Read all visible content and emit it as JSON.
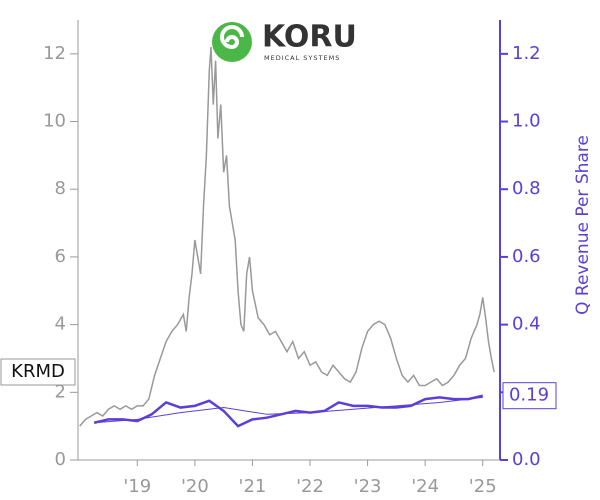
{
  "chart_data": {
    "type": "line",
    "logo_text": "KORU",
    "logo_subtext": "MEDICAL SYSTEMS",
    "y2_label": "Q Revenue Per Share",
    "ticker": "KRMD",
    "xlim": [
      2017.97,
      2025.3
    ],
    "xticks": [
      {
        "value": 2019,
        "label": "'19"
      },
      {
        "value": 2020,
        "label": "'20"
      },
      {
        "value": 2021,
        "label": "'21"
      },
      {
        "value": 2022,
        "label": "'22"
      },
      {
        "value": 2023,
        "label": "'23"
      },
      {
        "value": 2024,
        "label": "'24"
      },
      {
        "value": 2025,
        "label": "'25"
      }
    ],
    "ylim": [
      0,
      13
    ],
    "yticks": [
      0,
      2,
      4,
      6,
      8,
      10,
      12
    ],
    "y2lim": [
      0,
      1.3
    ],
    "y2ticks": [
      {
        "value": 0,
        "label": "0.0"
      },
      0.2,
      0.4,
      0.6,
      0.8,
      {
        "value": 1,
        "label": "1.0"
      },
      1.2
    ],
    "series": [
      {
        "color": "#999999",
        "x": [
          2018.0,
          2018.1,
          2018.2,
          2018.3,
          2018.4,
          2018.5,
          2018.6,
          2018.7,
          2018.8,
          2018.9,
          2019.0,
          2019.1,
          2019.2,
          2019.3,
          2019.4,
          2019.5,
          2019.6,
          2019.7,
          2019.8,
          2019.85,
          2019.9,
          2019.95,
          2020.0,
          2020.05,
          2020.1,
          2020.15,
          2020.2,
          2020.25,
          2020.28,
          2020.32,
          2020.36,
          2020.4,
          2020.45,
          2020.5,
          2020.55,
          2020.6,
          2020.65,
          2020.7,
          2020.75,
          2020.8,
          2020.85,
          2020.9,
          2020.95,
          2021.0,
          2021.1,
          2021.2,
          2021.3,
          2021.4,
          2021.5,
          2021.6,
          2021.7,
          2021.8,
          2021.9,
          2022.0,
          2022.1,
          2022.2,
          2022.3,
          2022.4,
          2022.5,
          2022.6,
          2022.7,
          2022.8,
          2022.9,
          2023.0,
          2023.1,
          2023.2,
          2023.3,
          2023.4,
          2023.5,
          2023.6,
          2023.7,
          2023.8,
          2023.9,
          2024.0,
          2024.1,
          2024.2,
          2024.3,
          2024.4,
          2024.5,
          2024.6,
          2024.7,
          2024.8,
          2024.9,
          2024.95,
          2025.0,
          2025.05,
          2025.1,
          2025.15,
          2025.2
        ],
        "values": [
          1.0,
          1.2,
          1.3,
          1.4,
          1.3,
          1.5,
          1.6,
          1.5,
          1.6,
          1.5,
          1.6,
          1.6,
          1.8,
          2.5,
          3.0,
          3.5,
          3.8,
          4.0,
          4.3,
          3.8,
          4.8,
          5.5,
          6.5,
          6.0,
          5.5,
          7.5,
          9.0,
          11.5,
          12.2,
          10.5,
          11.8,
          9.5,
          10.5,
          8.5,
          9.0,
          7.5,
          7.0,
          6.5,
          5.0,
          4.0,
          3.8,
          5.5,
          6.0,
          5.0,
          4.2,
          4.0,
          3.7,
          3.8,
          3.5,
          3.2,
          3.5,
          3.0,
          3.2,
          2.8,
          2.9,
          2.6,
          2.5,
          2.8,
          2.6,
          2.4,
          2.3,
          2.6,
          3.3,
          3.8,
          4.0,
          4.1,
          4.0,
          3.6,
          3.0,
          2.5,
          2.3,
          2.5,
          2.2,
          2.2,
          2.3,
          2.4,
          2.2,
          2.3,
          2.5,
          2.8,
          3.0,
          3.6,
          4.0,
          4.3,
          4.8,
          4.2,
          3.5,
          3.0,
          2.6
        ]
      },
      {
        "color": "#5b3fd6",
        "axis": "y2",
        "width": 2.5,
        "x": [
          2018.25,
          2018.5,
          2018.75,
          2019.0,
          2019.25,
          2019.5,
          2019.75,
          2020.0,
          2020.25,
          2020.5,
          2020.75,
          2021.0,
          2021.25,
          2021.5,
          2021.75,
          2022.0,
          2022.25,
          2022.5,
          2022.75,
          2023.0,
          2023.25,
          2023.5,
          2023.75,
          2024.0,
          2024.25,
          2024.5,
          2024.75,
          2025.0
        ],
        "values": [
          0.11,
          0.12,
          0.12,
          0.115,
          0.135,
          0.17,
          0.155,
          0.16,
          0.175,
          0.145,
          0.1,
          0.12,
          0.125,
          0.135,
          0.145,
          0.14,
          0.145,
          0.17,
          0.16,
          0.16,
          0.155,
          0.155,
          0.16,
          0.18,
          0.185,
          0.18,
          0.18,
          0.19
        ],
        "value_labels": [
          null,
          null,
          null,
          null,
          null,
          null,
          null,
          null,
          null,
          null,
          null,
          null,
          null,
          null,
          null,
          null,
          null,
          null,
          null,
          null,
          null,
          null,
          null,
          null,
          null,
          null,
          null,
          "0.19"
        ]
      },
      {
        "color": "#5b3fd6",
        "axis": "y2",
        "width": 1,
        "x": [
          2018.25,
          2019.0,
          2019.75,
          2020.5,
          2021.25,
          2022.0,
          2022.75,
          2023.5,
          2024.25,
          2025.0
        ],
        "values": [
          0.11,
          0.12,
          0.14,
          0.155,
          0.135,
          0.14,
          0.15,
          0.16,
          0.17,
          0.185
        ]
      }
    ]
  }
}
